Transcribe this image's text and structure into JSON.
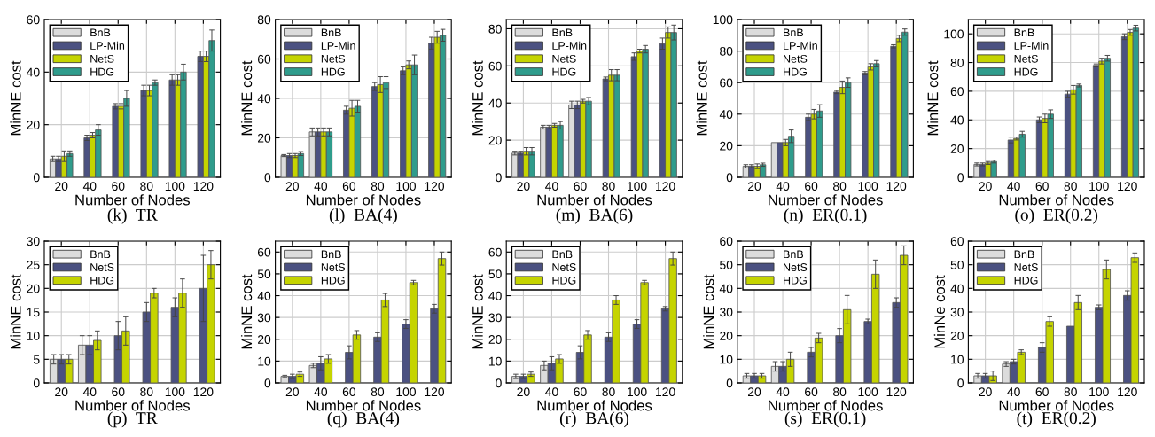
{
  "chart_data": [
    {
      "type": "bar",
      "title": "(k)  TR",
      "xlabel": "Number of Nodes",
      "ylabel": "MinNE cost",
      "categories": [
        "20",
        "40",
        "60",
        "80",
        "100",
        "120"
      ],
      "ylim": [
        0,
        60
      ],
      "yticks": [
        0,
        20,
        40,
        60
      ],
      "grid": true,
      "legend": "top left",
      "series": [
        {
          "name": "BnB",
          "color": "#dcdcdc",
          "values": [
            7,
            null,
            null,
            null,
            null,
            null
          ],
          "errors": [
            1,
            null,
            null,
            null,
            null,
            null
          ]
        },
        {
          "name": "LP-Min",
          "color": "#4b5181",
          "values": [
            7,
            15,
            27,
            33,
            37,
            46
          ],
          "errors": [
            1,
            1,
            1,
            2,
            2,
            2
          ]
        },
        {
          "name": "NetS",
          "color": "#c5d400",
          "values": [
            8,
            16,
            27,
            33,
            37,
            46
          ],
          "errors": [
            2,
            1,
            1,
            2,
            2,
            2
          ]
        },
        {
          "name": "HDG",
          "color": "#2f9c8c",
          "values": [
            9,
            18,
            30,
            36,
            40,
            52
          ],
          "errors": [
            1,
            2,
            3,
            1,
            3,
            4
          ]
        }
      ]
    },
    {
      "type": "bar",
      "title": "(l)  BA(4)",
      "xlabel": "Number of Nodes",
      "ylabel": "MinNE cost",
      "categories": [
        "20",
        "40",
        "60",
        "80",
        "100",
        "120"
      ],
      "ylim": [
        0,
        80
      ],
      "yticks": [
        0,
        20,
        40,
        60,
        80
      ],
      "grid": true,
      "legend": "top left",
      "series": [
        {
          "name": "BnB",
          "color": "#dcdcdc",
          "values": [
            11,
            23,
            null,
            null,
            null,
            null
          ],
          "errors": [
            0.5,
            2,
            null,
            null,
            null,
            null
          ]
        },
        {
          "name": "LP-Min",
          "color": "#4b5181",
          "values": [
            11,
            23,
            34,
            46,
            54,
            68
          ],
          "errors": [
            1,
            2,
            2,
            2,
            2,
            3
          ]
        },
        {
          "name": "NetS",
          "color": "#c5d400",
          "values": [
            11,
            23,
            35,
            47,
            57,
            71
          ],
          "errors": [
            1,
            2,
            4,
            4,
            2,
            3
          ]
        },
        {
          "name": "HDG",
          "color": "#2f9c8c",
          "values": [
            12,
            23,
            36,
            48,
            57,
            72
          ],
          "errors": [
            1,
            2,
            3,
            3,
            5,
            3
          ]
        }
      ]
    },
    {
      "type": "bar",
      "title": "(m)  BA(6)",
      "xlabel": "Number of Nodes",
      "ylabel": "MinNE cost",
      "categories": [
        "20",
        "40",
        "60",
        "80",
        "100",
        "120"
      ],
      "ylim": [
        0,
        85
      ],
      "yticks": [
        0,
        20,
        40,
        60,
        80
      ],
      "grid": true,
      "legend": "top left",
      "series": [
        {
          "name": "BnB",
          "color": "#dcdcdc",
          "values": [
            13,
            27,
            39,
            null,
            null,
            null
          ],
          "errors": [
            1,
            1,
            2,
            null,
            null,
            null
          ]
        },
        {
          "name": "LP-Min",
          "color": "#4b5181",
          "values": [
            13,
            27,
            39,
            53,
            65,
            72
          ],
          "errors": [
            1,
            1,
            2,
            1,
            2,
            3
          ]
        },
        {
          "name": "NetS",
          "color": "#c5d400",
          "values": [
            14,
            28,
            41,
            55,
            68,
            78
          ],
          "errors": [
            2,
            1,
            1,
            3,
            1,
            3
          ]
        },
        {
          "name": "HDG",
          "color": "#2f9c8c",
          "values": [
            14,
            28,
            41,
            55,
            69,
            78
          ],
          "errors": [
            2,
            2,
            2,
            3,
            2,
            4
          ]
        }
      ]
    },
    {
      "type": "bar",
      "title": "(n)  ER(0.1)",
      "xlabel": "Number of Nodes",
      "ylabel": "MinNE cost",
      "categories": [
        "20",
        "40",
        "60",
        "80",
        "100",
        "120"
      ],
      "ylim": [
        0,
        100
      ],
      "yticks": [
        0,
        20,
        40,
        60,
        80,
        100
      ],
      "grid": true,
      "legend": "top left",
      "series": [
        {
          "name": "BnB",
          "color": "#dcdcdc",
          "values": [
            7,
            22,
            null,
            null,
            null,
            null
          ],
          "errors": [
            1,
            null,
            null,
            null,
            null,
            null
          ]
        },
        {
          "name": "LP-Min",
          "color": "#4b5181",
          "values": [
            7,
            22,
            38,
            54,
            66,
            83
          ],
          "errors": [
            1,
            null,
            2,
            1,
            1,
            1
          ]
        },
        {
          "name": "NetS",
          "color": "#c5d400",
          "values": [
            7,
            22,
            40,
            57,
            70,
            88
          ],
          "errors": [
            1.5,
            2,
            3,
            4,
            2,
            2
          ]
        },
        {
          "name": "HDG",
          "color": "#2f9c8c",
          "values": [
            8,
            26,
            42,
            60,
            72,
            92
          ],
          "errors": [
            1,
            4,
            4,
            3,
            2,
            2
          ]
        }
      ]
    },
    {
      "type": "bar",
      "title": "(o)  ER(0.2)",
      "xlabel": "Number of Nodes",
      "ylabel": "MinNE cost",
      "categories": [
        "20",
        "40",
        "60",
        "80",
        "100",
        "120"
      ],
      "ylim": [
        0,
        110
      ],
      "yticks": [
        0,
        20,
        40,
        60,
        80,
        100
      ],
      "grid": true,
      "legend": "top left",
      "series": [
        {
          "name": "BnB",
          "color": "#dcdcdc",
          "values": [
            9,
            null,
            null,
            null,
            null,
            null
          ],
          "errors": [
            1,
            null,
            null,
            null,
            null,
            null
          ]
        },
        {
          "name": "LP-Min",
          "color": "#4b5181",
          "values": [
            9,
            26,
            40,
            58,
            78,
            98
          ],
          "errors": [
            1,
            2,
            2,
            2,
            1,
            2
          ]
        },
        {
          "name": "NetS",
          "color": "#c5d400",
          "values": [
            10,
            27,
            41,
            61,
            81,
            101
          ],
          "errors": [
            1,
            1,
            3,
            3,
            2,
            2
          ]
        },
        {
          "name": "HDG",
          "color": "#2f9c8c",
          "values": [
            11,
            30,
            44,
            64,
            83,
            104
          ],
          "errors": [
            1,
            2,
            3,
            1,
            2,
            2
          ]
        }
      ]
    },
    {
      "type": "bar",
      "title": "(p)  TR",
      "xlabel": "Number of Nodes",
      "ylabel": "MinNE cost",
      "categories": [
        "20",
        "40",
        "60",
        "80",
        "100",
        "120"
      ],
      "ylim": [
        0,
        30
      ],
      "yticks": [
        0,
        5,
        10,
        15,
        20,
        25,
        30
      ],
      "grid": true,
      "legend": "top left",
      "series": [
        {
          "name": "BnB",
          "color": "#dcdcdc",
          "values": [
            5,
            8,
            null,
            null,
            null,
            null
          ],
          "errors": [
            1,
            2,
            null,
            null,
            null,
            null
          ]
        },
        {
          "name": "NetS",
          "color": "#4b5181",
          "values": [
            5,
            8,
            10,
            15,
            16,
            20
          ],
          "errors": [
            1,
            2,
            3,
            2,
            2,
            7
          ]
        },
        {
          "name": "HDG",
          "color": "#c5d400",
          "values": [
            5,
            9,
            11,
            19,
            19,
            25
          ],
          "errors": [
            1,
            2,
            3,
            1,
            3,
            3
          ]
        }
      ]
    },
    {
      "type": "bar",
      "title": "(q)  BA(4)",
      "xlabel": "Number of Nodes",
      "ylabel": "MinNE cost",
      "categories": [
        "20",
        "40",
        "60",
        "80",
        "100",
        "120"
      ],
      "ylim": [
        0,
        65
      ],
      "yticks": [
        0,
        10,
        20,
        30,
        40,
        50,
        60
      ],
      "grid": true,
      "legend": "top left",
      "series": [
        {
          "name": "BnB",
          "color": "#dcdcdc",
          "values": [
            3,
            8,
            null,
            null,
            null,
            null
          ],
          "errors": [
            0.5,
            1,
            null,
            null,
            null,
            null
          ]
        },
        {
          "name": "NetS",
          "color": "#4b5181",
          "values": [
            3,
            9,
            14,
            21,
            27,
            34
          ],
          "errors": [
            1,
            3,
            3,
            2,
            2,
            2
          ]
        },
        {
          "name": "HDG",
          "color": "#c5d400",
          "values": [
            4,
            11,
            22,
            38,
            46,
            57
          ],
          "errors": [
            1,
            2,
            2,
            3,
            1,
            3
          ]
        }
      ]
    },
    {
      "type": "bar",
      "title": "(r)  BA(6)",
      "xlabel": "Number of Nodes",
      "ylabel": "MinNE cost",
      "categories": [
        "20",
        "40",
        "60",
        "80",
        "100",
        "120"
      ],
      "ylim": [
        0,
        65
      ],
      "yticks": [
        0,
        10,
        20,
        30,
        40,
        50,
        60
      ],
      "grid": true,
      "legend": "top left",
      "series": [
        {
          "name": "BnB",
          "color": "#dcdcdc",
          "values": [
            3,
            8,
            null,
            null,
            null,
            null
          ],
          "errors": [
            1,
            2,
            null,
            null,
            null,
            null
          ]
        },
        {
          "name": "NetS",
          "color": "#4b5181",
          "values": [
            3,
            9,
            14,
            21,
            27,
            34
          ],
          "errors": [
            1,
            3,
            3,
            2,
            2,
            1
          ]
        },
        {
          "name": "HDG",
          "color": "#c5d400",
          "values": [
            4,
            11,
            22,
            38,
            46,
            57
          ],
          "errors": [
            1,
            2,
            2,
            2,
            1,
            3
          ]
        }
      ]
    },
    {
      "type": "bar",
      "title": "(s)  ER(0.1)",
      "xlabel": "Number of Nodes",
      "ylabel": "MinNE cost",
      "categories": [
        "20",
        "40",
        "60",
        "80",
        "100",
        "120"
      ],
      "ylim": [
        0,
        60
      ],
      "yticks": [
        0,
        10,
        20,
        30,
        40,
        50,
        60
      ],
      "grid": true,
      "legend": "top left",
      "series": [
        {
          "name": "BnB",
          "color": "#dcdcdc",
          "values": [
            3,
            7,
            null,
            null,
            null,
            null
          ],
          "errors": [
            1,
            2,
            null,
            null,
            null,
            null
          ]
        },
        {
          "name": "NetS",
          "color": "#4b5181",
          "values": [
            3,
            7,
            13,
            20,
            26,
            34
          ],
          "errors": [
            1,
            2,
            2,
            3,
            1,
            2
          ]
        },
        {
          "name": "HDG",
          "color": "#c5d400",
          "values": [
            3,
            10,
            19,
            31,
            46,
            54
          ],
          "errors": [
            1,
            3,
            2,
            6,
            6,
            4
          ]
        }
      ]
    },
    {
      "type": "bar",
      "title": "(t)  ER(0.2)",
      "xlabel": "Number of Nodes",
      "ylabel": "MinNe cost",
      "categories": [
        "20",
        "40",
        "60",
        "80",
        "100",
        "120"
      ],
      "ylim": [
        0,
        60
      ],
      "yticks": [
        0,
        10,
        20,
        30,
        40,
        50,
        60
      ],
      "grid": true,
      "legend": "top left",
      "series": [
        {
          "name": "BnB",
          "color": "#dcdcdc",
          "values": [
            3,
            8,
            null,
            null,
            null,
            null
          ],
          "errors": [
            1,
            1,
            null,
            null,
            null,
            null
          ]
        },
        {
          "name": "NetS",
          "color": "#4b5181",
          "values": [
            3,
            9,
            15,
            24,
            32,
            37
          ],
          "errors": [
            1,
            1,
            2,
            null,
            1,
            2
          ]
        },
        {
          "name": "HDG",
          "color": "#c5d400",
          "values": [
            3,
            13,
            26,
            34,
            48,
            53
          ],
          "errors": [
            2,
            1,
            2,
            3,
            4,
            2
          ]
        }
      ]
    }
  ]
}
